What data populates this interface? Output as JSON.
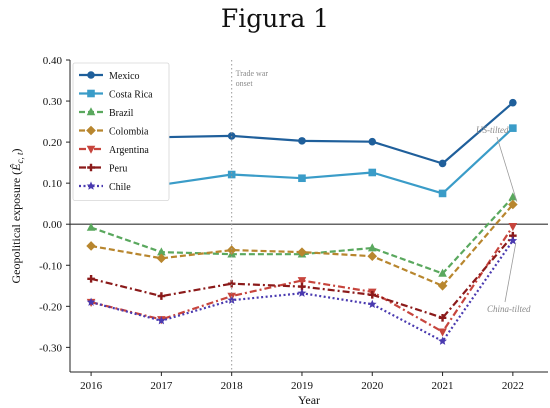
{
  "figure_title": "Figura 1",
  "chart_data": {
    "type": "line",
    "title": "",
    "xlabel": "Year",
    "ylabel": "Geopolitical exposure (Ê_c,t)",
    "ylabel_main": "Geopolitical exposure (",
    "ylabel_symbol": "Ê",
    "ylabel_sub": "c, t",
    "ylabel_close": ")",
    "x": [
      2016,
      2017,
      2018,
      2019,
      2020,
      2021,
      2022
    ],
    "xlim": [
      2015.7,
      2022.5
    ],
    "ylim": [
      -0.36,
      0.4
    ],
    "yticks": [
      0.4,
      0.3,
      0.2,
      0.1,
      0.0,
      -0.1,
      -0.2,
      -0.3
    ],
    "ytick_labels": [
      "0.40",
      "0.30",
      "0.20",
      "0.10",
      "0.00",
      "-0.10",
      "-0.20",
      "-0.30"
    ],
    "xtick_labels": [
      "2016",
      "2017",
      "2018",
      "2019",
      "2020",
      "2021",
      "2022"
    ],
    "grid": false,
    "legend_position": "top-left",
    "zero_line": true,
    "series": [
      {
        "name": "Mexico",
        "color": "#1f5f9b",
        "marker": "circle",
        "dash": "solid",
        "values": [
          0.26,
          0.212,
          0.215,
          0.203,
          0.201,
          0.148,
          0.296
        ]
      },
      {
        "name": "Costa Rica",
        "color": "#3a9cc8",
        "marker": "square",
        "dash": "solid",
        "values": [
          0.127,
          0.096,
          0.121,
          0.112,
          0.126,
          0.075,
          0.234
        ]
      },
      {
        "name": "Brazil",
        "color": "#5aa85e",
        "marker": "triangle-up",
        "dash": "dashed",
        "values": [
          -0.008,
          -0.068,
          -0.073,
          -0.073,
          -0.058,
          -0.12,
          0.066
        ]
      },
      {
        "name": "Colombia",
        "color": "#b8862e",
        "marker": "diamond",
        "dash": "dashed",
        "values": [
          -0.053,
          -0.083,
          -0.063,
          -0.068,
          -0.078,
          -0.15,
          0.048
        ]
      },
      {
        "name": "Argentina",
        "color": "#c7453d",
        "marker": "triangle-down",
        "dash": "dashdot",
        "values": [
          -0.19,
          -0.232,
          -0.175,
          -0.137,
          -0.165,
          -0.262,
          -0.005
        ]
      },
      {
        "name": "Peru",
        "color": "#8b1a1a",
        "marker": "plus",
        "dash": "dashdot",
        "values": [
          -0.133,
          -0.175,
          -0.145,
          -0.152,
          -0.172,
          -0.228,
          -0.028
        ]
      },
      {
        "name": "Chile",
        "color": "#4a3ab0",
        "marker": "star",
        "dash": "dotted",
        "values": [
          -0.19,
          -0.235,
          -0.185,
          -0.168,
          -0.195,
          -0.285,
          -0.04
        ]
      }
    ],
    "annotations": [
      {
        "text": "Trade war",
        "text2": "onset",
        "x": 2018
      },
      {
        "text": "US-tilted",
        "points_to": "2022"
      },
      {
        "text": "China-tilted",
        "points_to": "2022"
      }
    ],
    "colors": {
      "axis": "#222222",
      "zero_line": "#333333",
      "vline": "#9a9a9a",
      "annotation": "#8a8a8a"
    }
  }
}
